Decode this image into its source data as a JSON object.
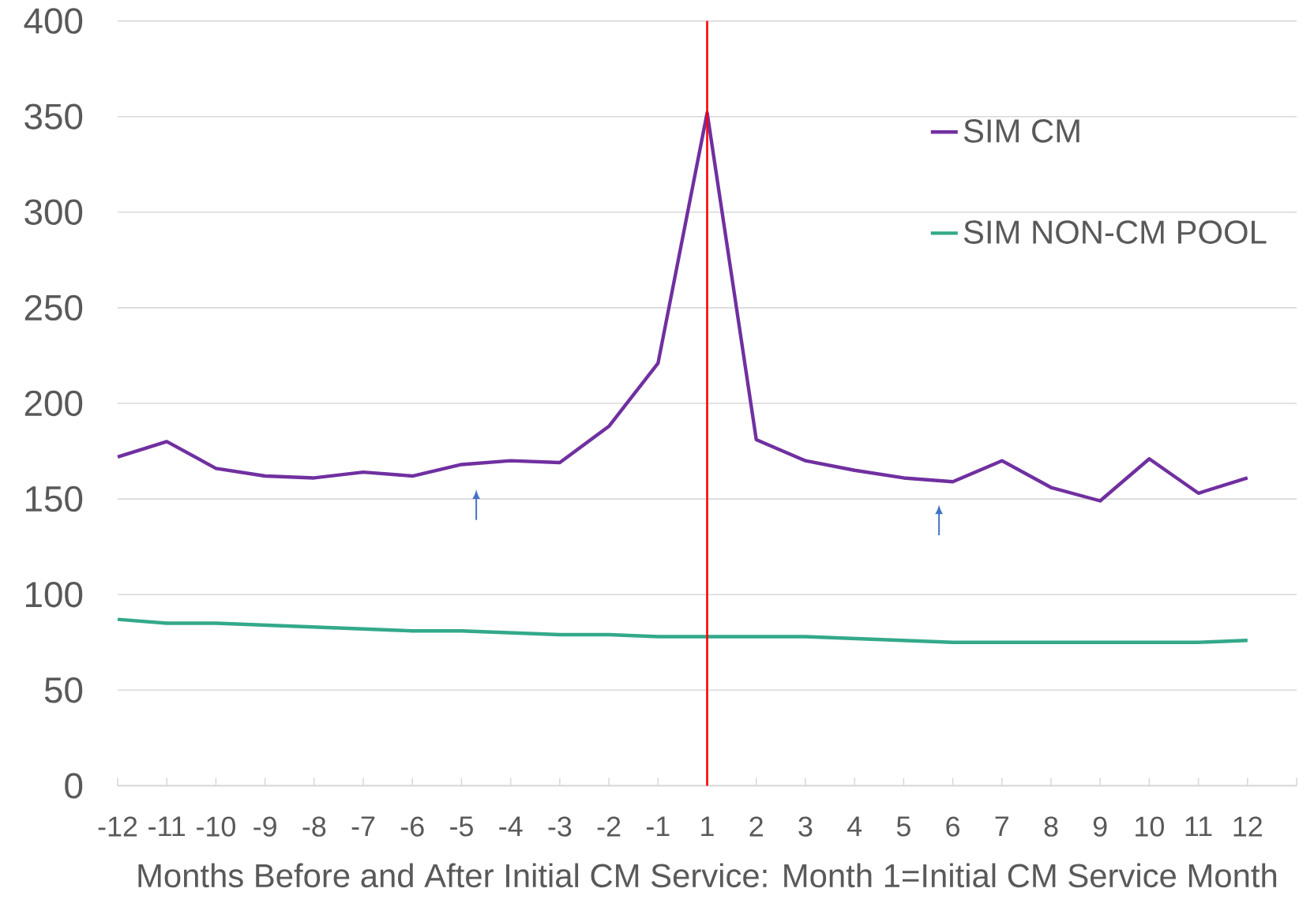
{
  "chart_data": {
    "type": "line",
    "xlabel": "Months Before and After Initial CM Service: Month 1=Initial CM Service Month",
    "categories": [
      "-12",
      "-11",
      "-10",
      "-9",
      "-8",
      "-7",
      "-6",
      "-5",
      "-4",
      "-3",
      "-2",
      "-1",
      "1",
      "2",
      "3",
      "4",
      "5",
      "6",
      "7",
      "8",
      "9",
      "10",
      "11",
      "12"
    ],
    "series": [
      {
        "name": "SIM CM",
        "color": "#7030a0",
        "values": [
          172,
          180,
          166,
          162,
          161,
          164,
          162,
          168,
          170,
          169,
          188,
          221,
          352,
          181,
          170,
          165,
          161,
          159,
          170,
          156,
          149,
          171,
          153,
          161
        ]
      },
      {
        "name": "SIM NON-CM POOL",
        "color": "#33a98a",
        "values": [
          87,
          85,
          85,
          84,
          83,
          82,
          81,
          81,
          80,
          79,
          79,
          78,
          78,
          78,
          78,
          77,
          76,
          75,
          75,
          75,
          75,
          75,
          75,
          76
        ]
      }
    ],
    "ylim": [
      0,
      400
    ],
    "yticks": [
      0,
      50,
      100,
      150,
      200,
      250,
      300,
      350,
      400
    ],
    "grid": "y",
    "legend": "top right",
    "marker": "none",
    "line_style": "solid",
    "ref_lines": [
      {
        "axis": "x",
        "value": "1",
        "color": "#ff0000"
      }
    ]
  }
}
